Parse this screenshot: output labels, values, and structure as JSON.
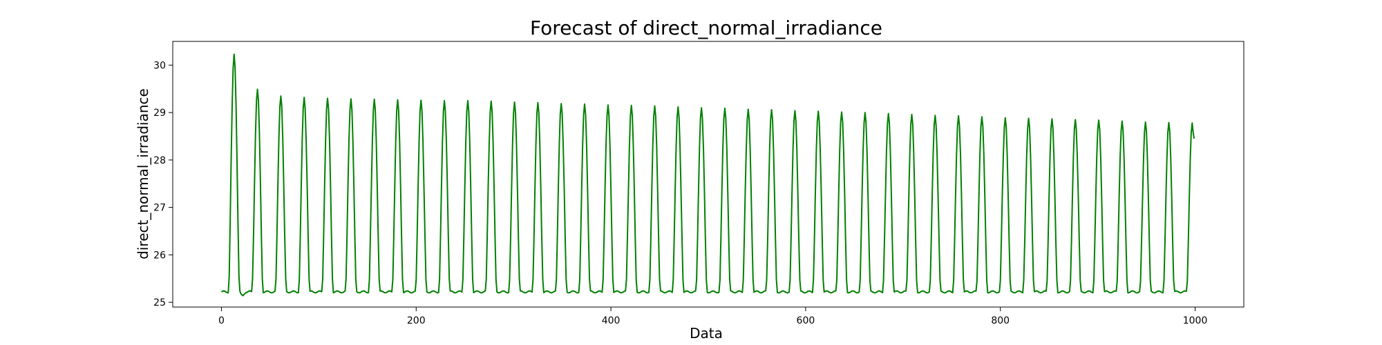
{
  "chart_data": {
    "type": "line",
    "title": "Forecast of direct_normal_irradiance",
    "xlabel": "Data",
    "ylabel": "direct_normal_irradiance",
    "xlim": [
      -50,
      1050
    ],
    "ylim": [
      24.9,
      30.5
    ],
    "x_ticks": [
      0,
      200,
      400,
      600,
      800,
      1000
    ],
    "y_ticks": [
      25,
      26,
      27,
      28,
      29,
      30
    ],
    "grid": false,
    "legend": "none",
    "series": [
      {
        "color": "#008000",
        "n_points": 1000,
        "period": 24,
        "baseline": 25.22,
        "first_peak": {
          "x": 13,
          "y": 30.23
        },
        "peaks": [
          {
            "x": 37,
            "y": 29.49
          },
          {
            "x": 61,
            "y": 29.35
          },
          {
            "x": 85,
            "y": 29.32
          },
          {
            "x": 109,
            "y": 29.3
          },
          {
            "x": 133,
            "y": 29.29
          },
          {
            "x": 157,
            "y": 29.28
          },
          {
            "x": 181,
            "y": 29.27
          },
          {
            "x": 205,
            "y": 29.26
          },
          {
            "x": 229,
            "y": 29.25
          },
          {
            "x": 253,
            "y": 29.25
          },
          {
            "x": 277,
            "y": 29.24
          },
          {
            "x": 301,
            "y": 29.22
          },
          {
            "x": 325,
            "y": 29.21
          },
          {
            "x": 349,
            "y": 29.19
          },
          {
            "x": 373,
            "y": 29.18
          },
          {
            "x": 397,
            "y": 29.16
          },
          {
            "x": 421,
            "y": 29.15
          },
          {
            "x": 445,
            "y": 29.14
          },
          {
            "x": 469,
            "y": 29.12
          },
          {
            "x": 493,
            "y": 29.1
          },
          {
            "x": 517,
            "y": 29.09
          },
          {
            "x": 541,
            "y": 29.07
          },
          {
            "x": 565,
            "y": 29.06
          },
          {
            "x": 589,
            "y": 29.04
          },
          {
            "x": 613,
            "y": 29.03
          },
          {
            "x": 637,
            "y": 29.01
          },
          {
            "x": 661,
            "y": 29.0
          },
          {
            "x": 685,
            "y": 28.98
          },
          {
            "x": 709,
            "y": 28.96
          },
          {
            "x": 733,
            "y": 28.94
          },
          {
            "x": 757,
            "y": 28.93
          },
          {
            "x": 781,
            "y": 28.91
          },
          {
            "x": 805,
            "y": 28.89
          },
          {
            "x": 829,
            "y": 28.88
          },
          {
            "x": 853,
            "y": 28.87
          },
          {
            "x": 877,
            "y": 28.85
          },
          {
            "x": 901,
            "y": 28.84
          },
          {
            "x": 925,
            "y": 28.82
          },
          {
            "x": 949,
            "y": 28.8
          },
          {
            "x": 973,
            "y": 28.79
          },
          {
            "x": 997,
            "y": 28.78
          }
        ],
        "last_point": {
          "x": 999,
          "y": 28.45
        },
        "post_first_peak_dip": {
          "x": 22,
          "y": 25.14
        }
      }
    ]
  }
}
